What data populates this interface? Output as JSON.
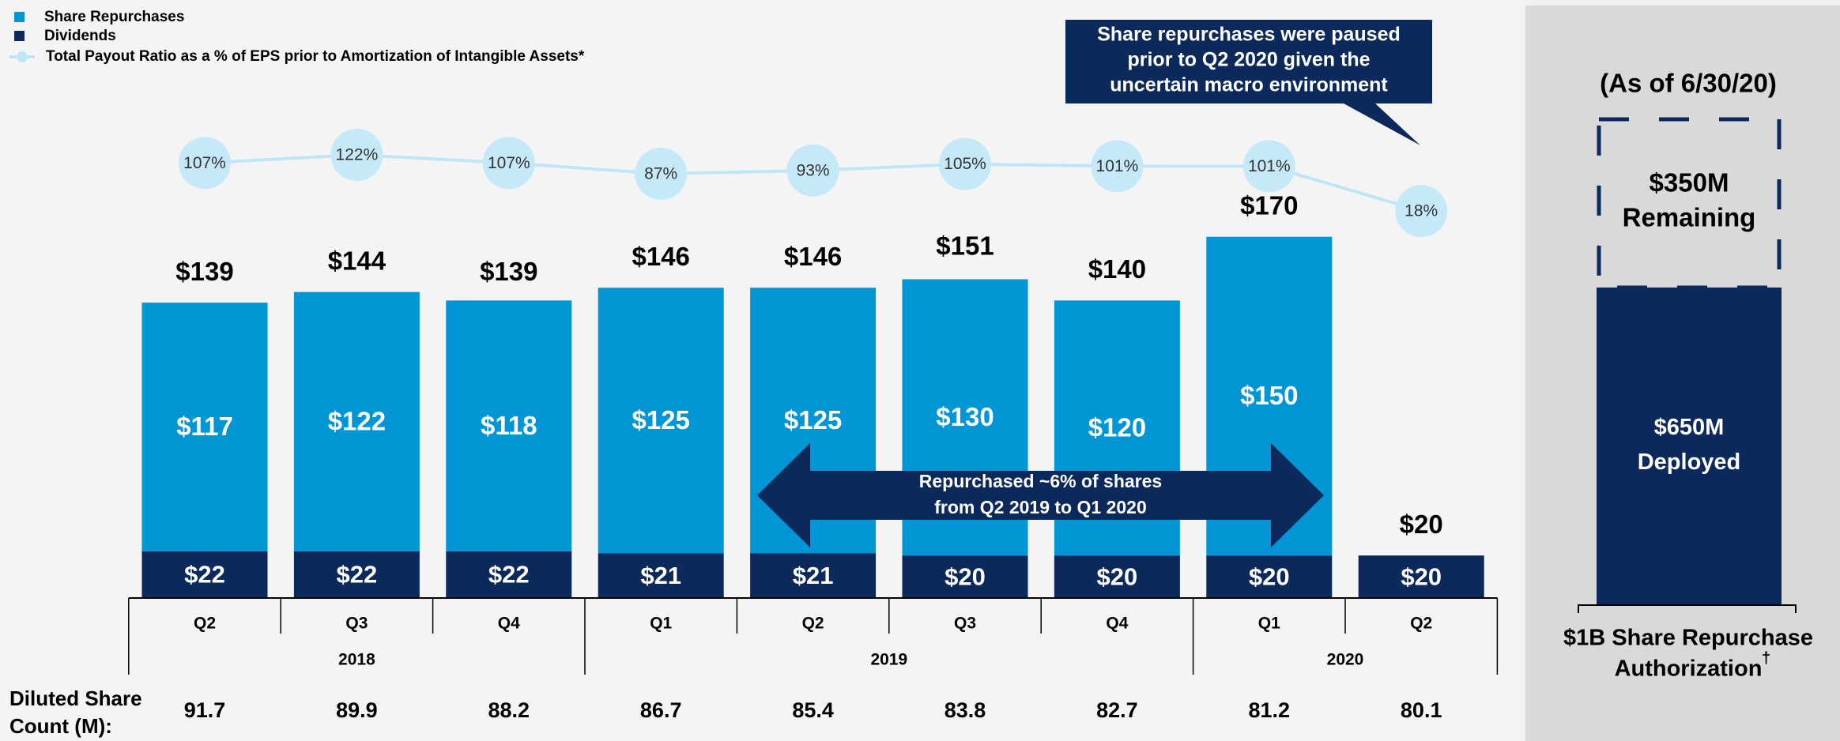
{
  "chart_data": {
    "type": "bar",
    "stacked": true,
    "legend": "top-left",
    "categories": [
      "Q2",
      "Q3",
      "Q4",
      "Q1",
      "Q2",
      "Q3",
      "Q4",
      "Q1",
      "Q2"
    ],
    "year_groups": [
      {
        "name": "2018",
        "count": 3
      },
      {
        "name": "2019",
        "count": 4
      },
      {
        "name": "2020",
        "count": 2
      }
    ],
    "series": [
      {
        "name": "Dividends",
        "color": "#0b2a5b",
        "values": [
          22,
          22,
          22,
          21,
          21,
          20,
          20,
          20,
          20
        ],
        "value_labels": [
          "$22",
          "$22",
          "$22",
          "$21",
          "$21",
          "$20",
          "$20",
          "$20",
          "$20"
        ]
      },
      {
        "name": "Share Repurchases",
        "color": "#0096d6",
        "values": [
          117,
          122,
          118,
          125,
          125,
          130,
          120,
          150,
          null
        ],
        "value_labels": [
          "$117",
          "$122",
          "$118",
          "$125",
          "$125",
          "$130",
          "$120",
          "$150",
          null
        ]
      }
    ],
    "totals": [
      139,
      144,
      139,
      146,
      146,
      151,
      140,
      170,
      20
    ],
    "total_labels": [
      "$139",
      "$144",
      "$139",
      "$146",
      "$146",
      "$151",
      "$140",
      "$170",
      "$20"
    ],
    "line_series": {
      "name": "Total Payout Ratio as a % of EPS prior to Amortization of  Intangible Assets*",
      "color": "#bfe6f7",
      "values": [
        107,
        122,
        107,
        87,
        93,
        105,
        101,
        101,
        18
      ],
      "value_labels": [
        "107%",
        "122%",
        "107%",
        "87%",
        "93%",
        "105%",
        "101%",
        "101%",
        "18%"
      ]
    },
    "share_count_label": [
      "Diluted Share",
      "Count (M):"
    ],
    "share_count": [
      91.7,
      89.9,
      88.2,
      86.7,
      85.4,
      83.8,
      82.7,
      81.2,
      80.1
    ],
    "callout": [
      "Share repurchases were paused",
      "prior to Q2 2020 given the",
      "uncertain macro environment"
    ],
    "arrow_text": [
      "Repurchased ~6% of shares",
      "from Q2 2019 to Q1 2020"
    ]
  },
  "authorization": {
    "title": "(As of 6/30/20)",
    "segments": [
      {
        "name": "Deployed",
        "value": 650,
        "label": "$650M",
        "color": "#0b2a5b"
      },
      {
        "name": "Remaining",
        "value": 350,
        "label": "$350M"
      }
    ],
    "caption": [
      "$1B Share Repurchase",
      "Authorization"
    ],
    "footnote_mark": "†"
  }
}
